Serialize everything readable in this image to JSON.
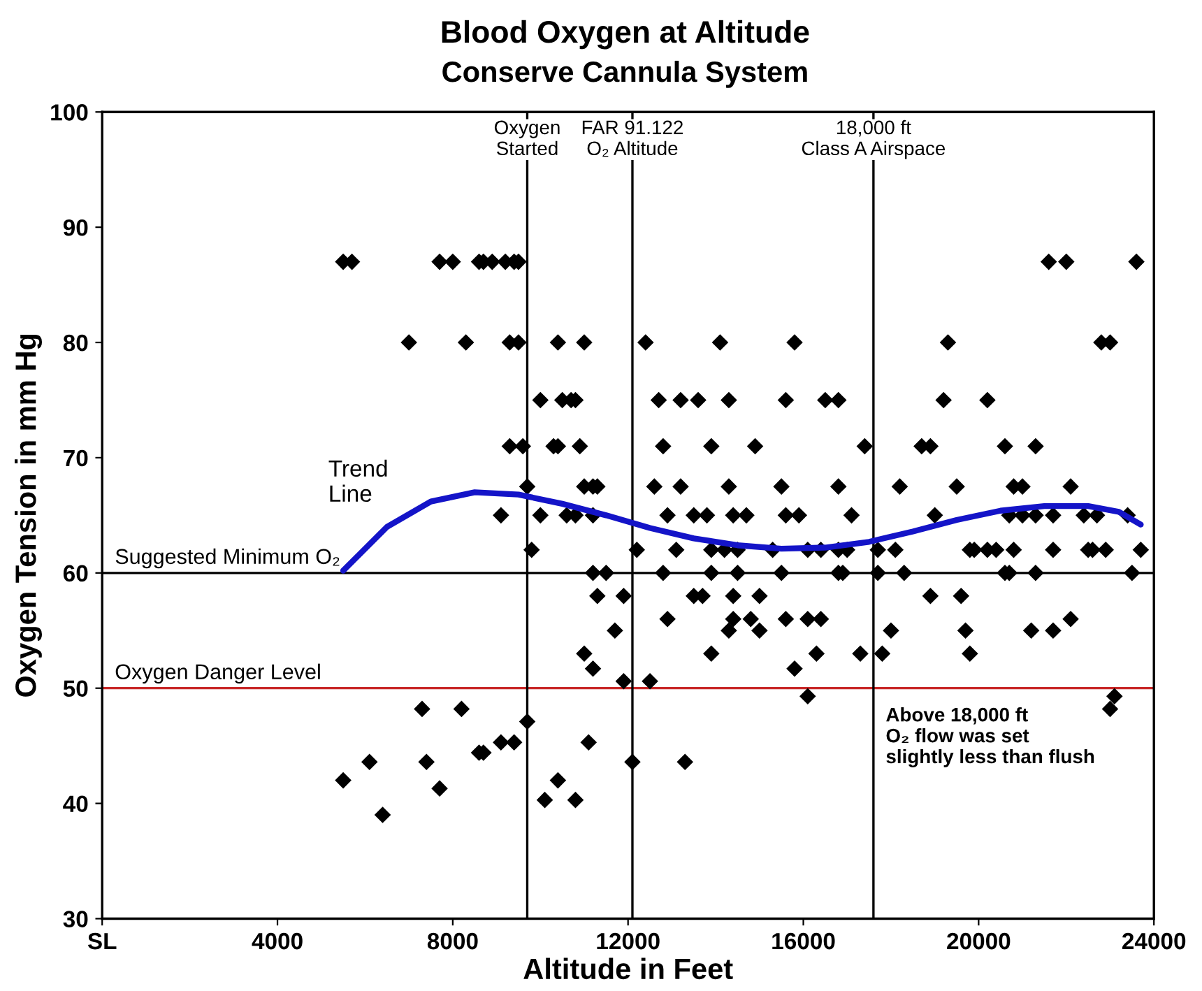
{
  "chart_data": {
    "type": "scatter",
    "title": "Blood Oxygen at Altitude",
    "subtitle": "Conserve Cannula System",
    "xlabel": "Altitude in Feet",
    "ylabel": "Oxygen Tension in mm Hg",
    "xlim": [
      0,
      24000
    ],
    "xticks": [
      {
        "value": 0,
        "label": "SL"
      },
      4000,
      8000,
      12000,
      16000,
      20000,
      24000
    ],
    "ylim": [
      30,
      100
    ],
    "yticks": [
      30,
      40,
      50,
      60,
      70,
      80,
      90,
      100
    ],
    "grid": false,
    "legend": false,
    "marker": "diamond",
    "series": [
      {
        "color": "#000000",
        "x": [
          5500,
          5700,
          7700,
          8000,
          8600,
          8700,
          8900,
          9200,
          9400,
          9500,
          21600,
          22000,
          23600,
          7000,
          8300,
          9300,
          9500,
          10400,
          11000,
          12400,
          14100,
          15800,
          19300,
          22800,
          23000,
          10000,
          10500,
          10700,
          10800,
          12700,
          13200,
          13600,
          14300,
          15600,
          16500,
          16800,
          19200,
          20200,
          9300,
          9600,
          10300,
          10400,
          10900,
          12800,
          13900,
          14900,
          17400,
          18700,
          18900,
          20600,
          21300,
          9700,
          11000,
          11200,
          11300,
          12600,
          13200,
          14300,
          15500,
          16800,
          18200,
          19500,
          20800,
          21000,
          22100,
          9100,
          10000,
          10600,
          10800,
          11200,
          12900,
          13500,
          13800,
          14400,
          14700,
          15600,
          15900,
          17100,
          19000,
          20700,
          21000,
          21300,
          21700,
          22400,
          22700,
          23400,
          9800,
          12200,
          13100,
          13900,
          14200,
          14500,
          15300,
          16100,
          16400,
          16800,
          17000,
          17700,
          18100,
          19800,
          19900,
          20200,
          20400,
          20800,
          21700,
          22500,
          22600,
          22900,
          23700,
          11200,
          11500,
          12800,
          13900,
          14500,
          15500,
          16800,
          16900,
          17700,
          18300,
          20600,
          20700,
          21300,
          23500,
          11300,
          11900,
          13500,
          13700,
          14400,
          15000,
          18900,
          19600,
          12900,
          14400,
          14800,
          15600,
          16100,
          16400,
          22100,
          11700,
          18000,
          19700,
          21200,
          21700,
          14300,
          15000,
          11000,
          13900,
          16300,
          17300,
          17800,
          19800,
          11200,
          15800,
          11900,
          12500,
          16100,
          23100,
          23000,
          7300,
          8200,
          9700,
          9100,
          9400,
          11100,
          8600,
          8700,
          6100,
          7400,
          12100,
          13300,
          5500,
          10400,
          7700,
          10100,
          10800,
          6400
        ],
        "values": [
          87,
          87,
          87,
          87,
          87,
          87,
          87,
          87,
          87,
          87,
          87,
          87,
          87,
          80,
          80,
          80,
          80,
          80,
          80,
          80,
          80,
          80,
          80,
          80,
          80,
          75,
          75,
          75,
          75,
          75,
          75,
          75,
          75,
          75,
          75,
          75,
          75,
          75,
          71,
          71,
          71,
          71,
          71,
          71,
          71,
          71,
          71,
          71,
          71,
          71,
          71,
          67.5,
          67.5,
          67.5,
          67.5,
          67.5,
          67.5,
          67.5,
          67.5,
          67.5,
          67.5,
          67.5,
          67.5,
          67.5,
          67.5,
          65,
          65,
          65,
          65,
          65,
          65,
          65,
          65,
          65,
          65,
          65,
          65,
          65,
          65,
          65,
          65,
          65,
          65,
          65,
          65,
          65,
          62,
          62,
          62,
          62,
          62,
          62,
          62,
          62,
          62,
          62,
          62,
          62,
          62,
          62,
          62,
          62,
          62,
          62,
          62,
          62,
          62,
          62,
          62,
          60,
          60,
          60,
          60,
          60,
          60,
          60,
          60,
          60,
          60,
          60,
          60,
          60,
          60,
          58,
          58,
          58,
          58,
          58,
          58,
          58,
          58,
          56,
          56,
          56,
          56,
          56,
          56,
          56,
          55,
          55,
          55,
          55,
          55,
          55,
          55,
          53,
          53,
          53,
          53,
          53,
          53,
          51.7,
          51.7,
          50.6,
          50.6,
          49.3,
          49.3,
          48.2,
          48.2,
          48.2,
          47.1,
          45.3,
          45.3,
          45.3,
          44.4,
          44.4,
          43.6,
          43.6,
          43.6,
          43.6,
          42,
          42,
          41.3,
          40.3,
          40.3,
          39
        ]
      },
      {
        "type": "line",
        "color": "#1414c8",
        "marker": "none",
        "line_style": "solid",
        "x": [
          5500,
          6500,
          7500,
          8500,
          9500,
          10500,
          11500,
          12500,
          13500,
          14500,
          15500,
          16500,
          17500,
          18500,
          19500,
          20500,
          21500,
          22500,
          23200,
          23700
        ],
        "values": [
          60.2,
          64,
          66.2,
          67,
          66.8,
          66,
          65,
          63.9,
          63,
          62.4,
          62.1,
          62.2,
          62.7,
          63.6,
          64.6,
          65.4,
          65.8,
          65.8,
          65.3,
          64.2
        ]
      }
    ],
    "ref_lines": [
      {
        "axis": "y",
        "value": 60,
        "label": "Suggested Minimum O₂",
        "color": "#000000"
      },
      {
        "axis": "y",
        "value": 50,
        "label": "Oxygen Danger Level",
        "color": "#c82828"
      },
      {
        "axis": "x",
        "value": 9700,
        "label": "Oxygen\nStarted",
        "color": "#000000"
      },
      {
        "axis": "x",
        "value": 12100,
        "label": "FAR 91.122\nO₂ Altitude",
        "color": "#000000"
      },
      {
        "axis": "x",
        "value": 17600,
        "label": "18,000 ft\nClass A Airspace",
        "color": "#000000"
      }
    ],
    "annotations": [
      "Trend\nLine",
      "Above 18,000 ft\nO₂ flow was set\nslightly less than flush"
    ]
  }
}
